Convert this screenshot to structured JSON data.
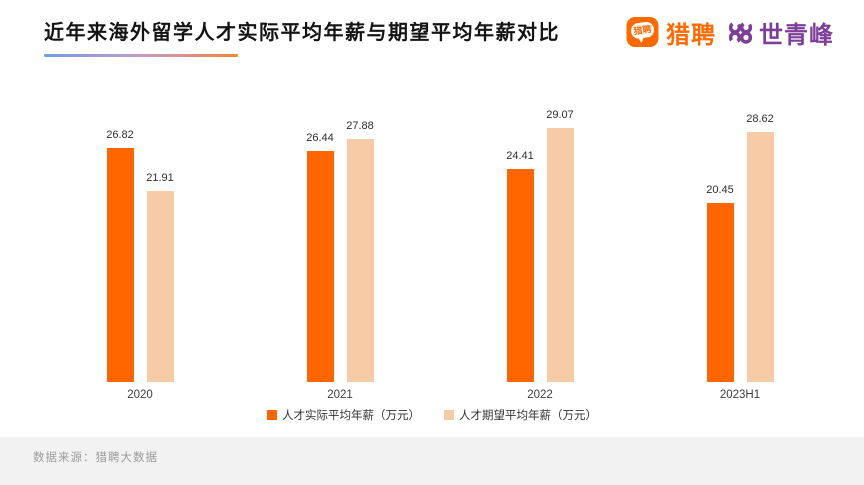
{
  "header": {
    "title": "近年来海外留学人才实际平均年薪与期望平均年薪对比"
  },
  "brand": {
    "liepin_bubble_text": "猎聘",
    "liepin_name": "猎聘",
    "partner_name": "世青峰"
  },
  "colors": {
    "actual_bar": "#ff6600",
    "expected_bar": "#f7cba6",
    "brand_orange": "#ff6a00",
    "brand_purple": "#7d3f98",
    "underline_gradient": [
      "#6d9ee0",
      "#c29bca",
      "#f0863c"
    ],
    "footer_bg": "#f2f2f2"
  },
  "chart_data": {
    "type": "bar",
    "title": "近年来海外留学人才实际平均年薪与期望平均年薪对比",
    "categories": [
      "2020",
      "2021",
      "2022",
      "2023H1"
    ],
    "series": [
      {
        "name": "人才实际平均年薪（万元）",
        "color": "#ff6600",
        "values": [
          26.82,
          26.44,
          24.41,
          20.45
        ]
      },
      {
        "name": "人才期望平均年薪（万元）",
        "color": "#f7cba6",
        "values": [
          21.91,
          27.88,
          29.07,
          28.62
        ]
      }
    ],
    "xlabel": "",
    "ylabel": "",
    "ylim": [
      0,
      32
    ],
    "grid": false,
    "axis_lines": false,
    "value_labels": true,
    "legend_position": "bottom"
  },
  "footer": {
    "source": "数据来源：猎聘大数据"
  }
}
